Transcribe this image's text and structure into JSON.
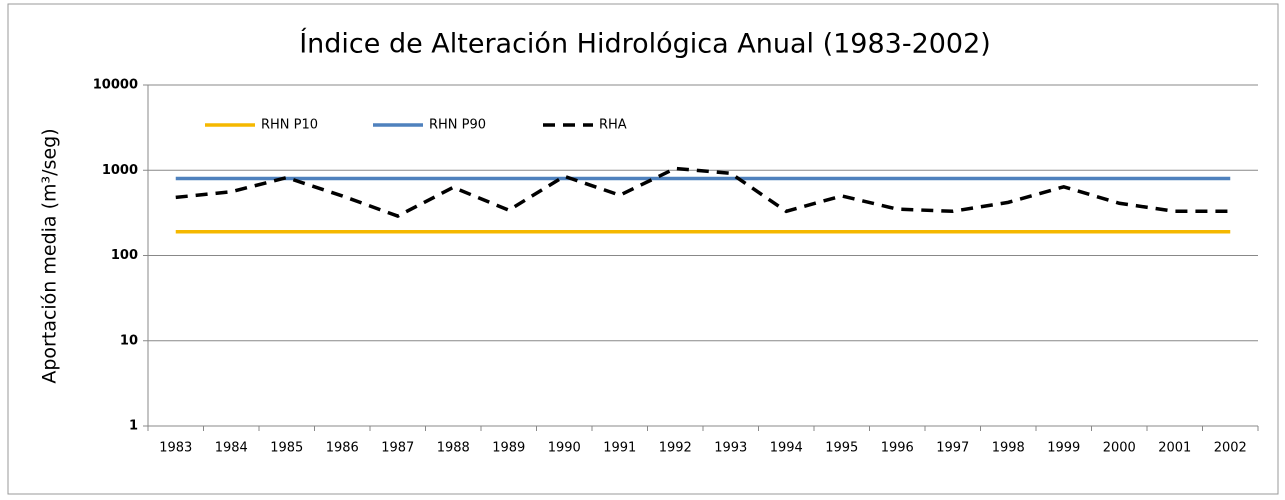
{
  "chart_data": {
    "type": "line",
    "title": "Índice de Alteración Hidrológica Anual (1983-2002)",
    "y_label": "Aportación media (m³/seg)",
    "categories": [
      "1983",
      "1984",
      "1985",
      "1986",
      "1987",
      "1988",
      "1989",
      "1990",
      "1991",
      "1992",
      "1993",
      "1994",
      "1995",
      "1996",
      "1997",
      "1998",
      "1999",
      "2000",
      "2001",
      "2002"
    ],
    "series": [
      {
        "name": "RHN P10",
        "color": "#f5b800",
        "dash": false,
        "values": [
          190,
          190,
          190,
          190,
          190,
          190,
          190,
          190,
          190,
          190,
          190,
          190,
          190,
          190,
          190,
          190,
          190,
          190,
          190,
          190
        ]
      },
      {
        "name": "RHN P90",
        "color": "#4f81bd",
        "dash": false,
        "values": [
          800,
          800,
          800,
          800,
          800,
          800,
          800,
          800,
          800,
          800,
          800,
          800,
          800,
          800,
          800,
          800,
          800,
          800,
          800,
          800
        ]
      },
      {
        "name": "RHA",
        "color": "#000000",
        "dash": true,
        "values": [
          480,
          560,
          820,
          500,
          290,
          630,
          340,
          850,
          510,
          1050,
          920,
          330,
          500,
          350,
          330,
          420,
          640,
          410,
          330,
          330
        ]
      }
    ],
    "ylim": [
      1,
      10000
    ],
    "yticks": [
      1,
      10,
      100,
      1000,
      10000
    ],
    "log_y": true,
    "grid": true,
    "legend": "top-left"
  }
}
